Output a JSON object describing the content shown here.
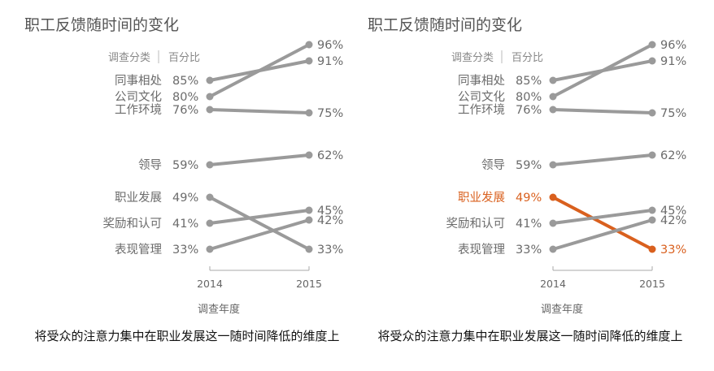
{
  "chart_data": [
    {
      "type": "line",
      "title": "职工反馈随时间的变化",
      "header_category": "调查分类",
      "header_percent": "百分比",
      "xlabel": "调查年度",
      "x": [
        "2014",
        "2015"
      ],
      "ylim": [
        30,
        100
      ],
      "series": [
        {
          "name": "同事相处",
          "label_2014": "85%",
          "label_2015": "91%",
          "values": [
            85,
            91
          ]
        },
        {
          "name": "公司文化",
          "label_2014": "80%",
          "label_2015": "96%",
          "values": [
            80,
            96
          ]
        },
        {
          "name": "工作环境",
          "label_2014": "76%",
          "label_2015": "75%",
          "values": [
            76,
            75
          ]
        },
        {
          "name": "领导",
          "label_2014": "59%",
          "label_2015": "62%",
          "values": [
            59,
            62
          ]
        },
        {
          "name": "职业发展",
          "label_2014": "49%",
          "label_2015": "33%",
          "values": [
            49,
            33
          ]
        },
        {
          "name": "奖励和认可",
          "label_2014": "41%",
          "label_2015": "45%",
          "values": [
            41,
            45
          ]
        },
        {
          "name": "表现管理",
          "label_2014": "33%",
          "label_2015": "42%",
          "values": [
            33,
            42
          ]
        }
      ],
      "caption": "将受众的注意力集中在职业发展这一随时间降低的维度上",
      "highlight": "",
      "colors": {
        "line": "#9a9a9a",
        "text": "#6b6b6b",
        "title": "#555555"
      }
    },
    {
      "type": "line",
      "title": "职工反馈随时间的变化",
      "header_category": "调查分类",
      "header_percent": "百分比",
      "xlabel": "调查年度",
      "x": [
        "2014",
        "2015"
      ],
      "ylim": [
        30,
        100
      ],
      "series": [
        {
          "name": "同事相处",
          "label_2014": "85%",
          "label_2015": "91%",
          "values": [
            85,
            91
          ]
        },
        {
          "name": "公司文化",
          "label_2014": "80%",
          "label_2015": "96%",
          "values": [
            80,
            96
          ]
        },
        {
          "name": "工作环境",
          "label_2014": "76%",
          "label_2015": "75%",
          "values": [
            76,
            75
          ]
        },
        {
          "name": "领导",
          "label_2014": "59%",
          "label_2015": "62%",
          "values": [
            59,
            62
          ]
        },
        {
          "name": "职业发展",
          "label_2014": "49%",
          "label_2015": "33%",
          "values": [
            49,
            33
          ]
        },
        {
          "name": "奖励和认可",
          "label_2014": "41%",
          "label_2015": "45%",
          "values": [
            41,
            45
          ]
        },
        {
          "name": "表现管理",
          "label_2014": "33%",
          "label_2015": "42%",
          "values": [
            33,
            42
          ]
        }
      ],
      "caption": "将受众的注意力集中在职业发展这一随时间降低的维度上",
      "highlight": "职业发展",
      "colors": {
        "line": "#9a9a9a",
        "text": "#6b6b6b",
        "title": "#555555",
        "highlight": "#d9601e"
      }
    }
  ]
}
